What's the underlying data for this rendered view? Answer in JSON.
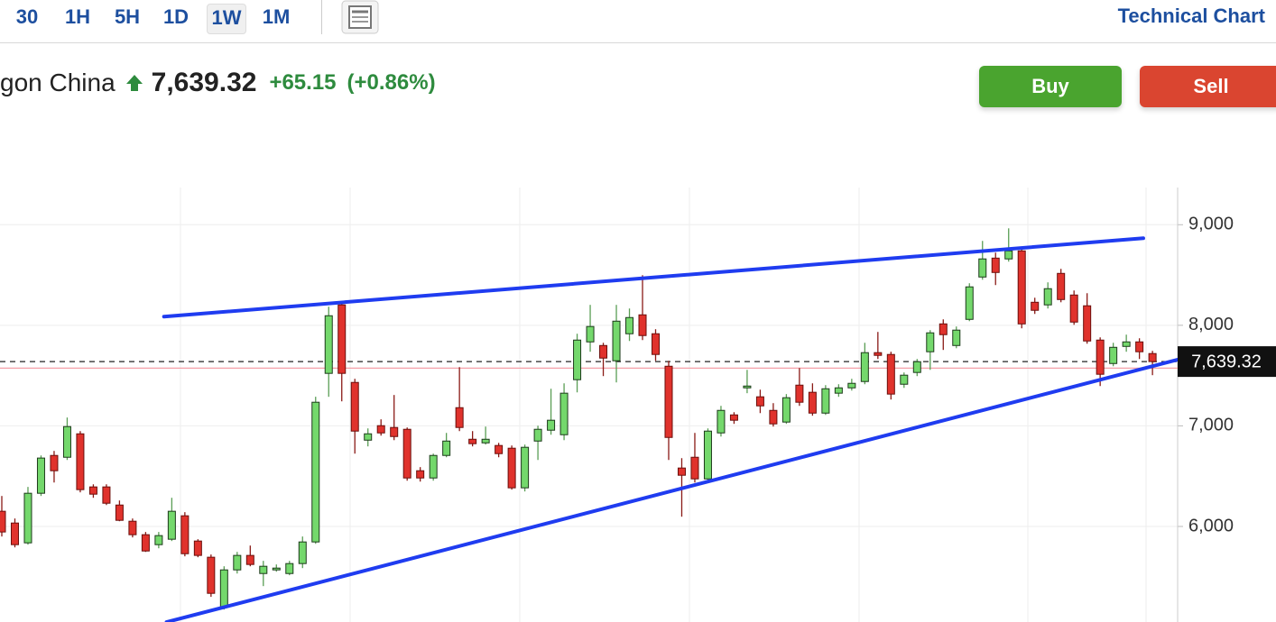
{
  "toolbar": {
    "periods": [
      "30",
      "1H",
      "5H",
      "1D",
      "1W",
      "1M"
    ],
    "selected_index": 4,
    "link": "Technical Chart"
  },
  "header": {
    "name": "gon China",
    "price": "7,639.32",
    "change": "+65.15",
    "change_pct": "(+0.86%)"
  },
  "buttons": [
    "Buy",
    "Sell"
  ],
  "chart_data": {
    "type": "candlestick",
    "open": [
      6151,
      6034,
      5837,
      6330,
      6706,
      6688,
      6921,
      6393,
      6393,
      6213,
      6052,
      5918,
      5819,
      5873,
      6106,
      5855,
      5694,
      5201,
      5568,
      5712,
      5532,
      5568,
      5532,
      5631,
      5846,
      7522,
      8203,
      7432,
      6858,
      7002,
      6984,
      6966,
      6554,
      6482,
      6706,
      7181,
      6867,
      6831,
      6805,
      6778,
      6384,
      6849,
      6957,
      6912,
      7459,
      7835,
      7799,
      7647,
      7916,
      8104,
      7916,
      7593,
      6581,
      6688,
      6473,
      6930,
      7109,
      7378,
      7289,
      7154,
      7038,
      7405,
      7334,
      7127,
      7325,
      7378,
      7441,
      7728,
      7710,
      7414,
      7531,
      7737,
      8014,
      7799,
      8059,
      8480,
      8668,
      8660,
      8740,
      8229,
      8203,
      8516,
      8301,
      8194,
      7853,
      7620,
      7790,
      7835,
      7719
    ],
    "high": [
      6303,
      6079,
      6393,
      6706,
      6751,
      7083,
      6948,
      6419,
      6419,
      6258,
      6079,
      5945,
      5945,
      6285,
      6142,
      5873,
      5721,
      5604,
      5747,
      5810,
      5658,
      5622,
      5658,
      5900,
      7289,
      8185,
      8230,
      7468,
      6975,
      7065,
      7307,
      6984,
      6590,
      6724,
      6930,
      7584,
      6948,
      6993,
      6831,
      6805,
      6814,
      7002,
      7369,
      7423,
      7916,
      8203,
      7826,
      8203,
      8167,
      8498,
      7961,
      7647,
      6679,
      6930,
      6975,
      7199,
      7136,
      7557,
      7360,
      7226,
      7316,
      7575,
      7423,
      7405,
      7414,
      7468,
      7826,
      7934,
      7737,
      7531,
      7665,
      7952,
      8059,
      7988,
      8418,
      8839,
      8722,
      8964,
      8767,
      8274,
      8427,
      8561,
      8346,
      8319,
      7880,
      7826,
      7907,
      7871,
      7746
    ],
    "low": [
      5900,
      5792,
      5819,
      6303,
      6437,
      6661,
      6339,
      6285,
      6213,
      6052,
      5891,
      5747,
      5783,
      5855,
      5703,
      5694,
      5300,
      5174,
      5532,
      5604,
      5407,
      5550,
      5515,
      5586,
      5828,
      7289,
      7244,
      6724,
      6796,
      6903,
      6858,
      6455,
      6446,
      6455,
      6688,
      6948,
      6796,
      6814,
      6688,
      6366,
      6348,
      6661,
      6912,
      6858,
      7333,
      7737,
      7495,
      7432,
      7844,
      7853,
      7647,
      6661,
      6097,
      6437,
      6437,
      6894,
      7020,
      7325,
      7127,
      6993,
      7020,
      7199,
      7101,
      7109,
      7289,
      7351,
      7414,
      7665,
      7262,
      7378,
      7495,
      7557,
      7755,
      7772,
      8041,
      8453,
      8400,
      8633,
      7970,
      8113,
      8167,
      8229,
      8005,
      7817,
      7396,
      7593,
      7737,
      7665,
      7504
    ],
    "close": [
      5945,
      5819,
      6330,
      6680,
      6554,
      6993,
      6366,
      6321,
      6231,
      6061,
      5918,
      5756,
      5909,
      6151,
      5729,
      5712,
      5335,
      5568,
      5712,
      5622,
      5604,
      5586,
      5631,
      5846,
      7235,
      8095,
      7522,
      6948,
      6921,
      6930,
      6894,
      6482,
      6482,
      6706,
      6849,
      6984,
      6823,
      6867,
      6724,
      6384,
      6787,
      6966,
      7056,
      7325,
      7853,
      7988,
      7674,
      8041,
      8077,
      7898,
      7710,
      6885,
      6509,
      6473,
      6948,
      7154,
      7056,
      7396,
      7199,
      7020,
      7280,
      7235,
      7127,
      7369,
      7378,
      7423,
      7728,
      7701,
      7316,
      7504,
      7638,
      7925,
      7907,
      7952,
      8382,
      8660,
      8525,
      8740,
      8014,
      8149,
      8364,
      8256,
      8032,
      7844,
      7513,
      7781,
      7835,
      7737,
      7639.32
    ],
    "up_color": "#74d86c",
    "down_color": "#e0322c",
    "ylim": [
      5050,
      9370
    ],
    "yticks": [
      {
        "value": 6000,
        "label": "6,000"
      },
      {
        "value": 7000,
        "label": "7,000"
      },
      {
        "value": 8000,
        "label": "8,000"
      },
      {
        "value": 9000,
        "label": "9,000"
      }
    ],
    "grid": true,
    "last_price": {
      "value": 7639.32,
      "label": "7,639.32"
    },
    "reference_line": 7574.17,
    "trendline_color": "#1f3cf0",
    "trendlines": [
      {
        "start": [
          12.4,
          8086
        ],
        "end": [
          87.3,
          8866
        ]
      },
      {
        "start": [
          12.6,
          5049
        ],
        "end": [
          92.8,
          7755
        ]
      }
    ]
  }
}
